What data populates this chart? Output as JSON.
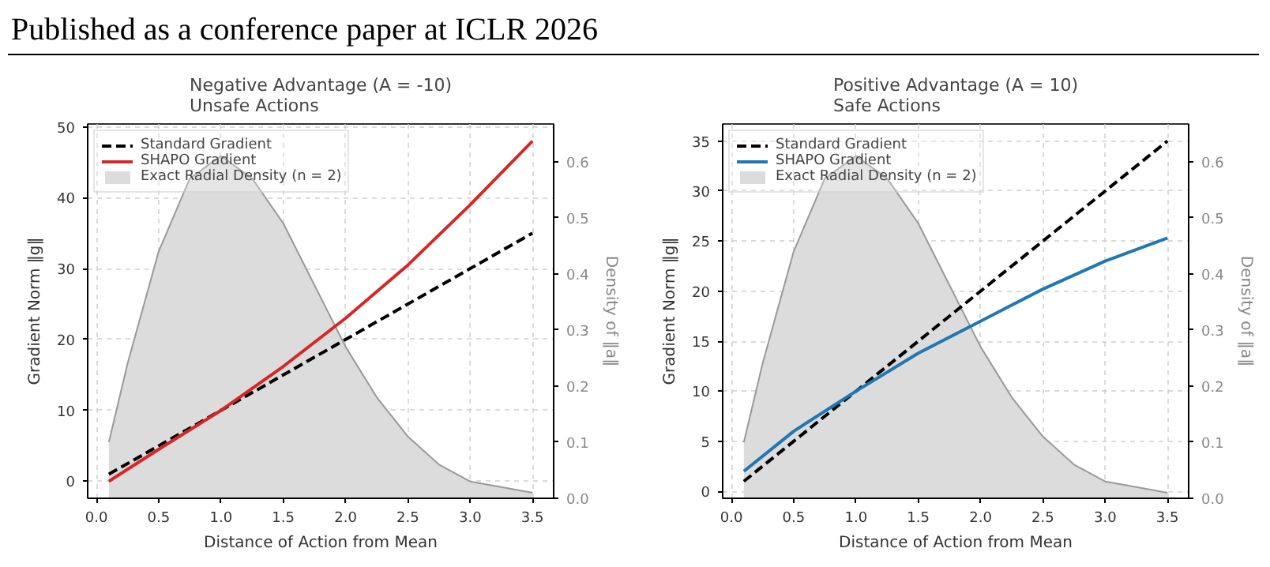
{
  "chart_data": [
    {
      "type": "line",
      "title": "Negative Advantage (A = -10)\nUnsafe Actions",
      "xlabel": "Distance of Action from Mean",
      "ylabel": "Gradient Norm ‖g‖",
      "y2label": "Density of ‖a‖",
      "annotations": [
        "Published as a conference paper at ICLR 2026"
      ],
      "xlim": [
        -0.07,
        3.67
      ],
      "xticks": [
        {
          "value": 0,
          "label": "0.0"
        },
        0.5,
        {
          "value": 1,
          "label": "1.0"
        },
        1.5,
        {
          "value": 2,
          "label": "2.0"
        },
        2.5,
        {
          "value": 3,
          "label": "3.0"
        },
        3.5
      ],
      "ylim": [
        -2.4,
        50.4
      ],
      "yticks": [
        0,
        10,
        20,
        30,
        40,
        50
      ],
      "y2lim": [
        0,
        0.667
      ],
      "y2ticks": [
        {
          "value": 0,
          "label": "0.0"
        },
        0.1,
        0.2,
        0.3,
        0.4,
        0.5,
        0.6
      ],
      "grid": true,
      "legend": "top left",
      "series": [
        {
          "name": "Standard Gradient",
          "line_style": "dashed",
          "color": "#000000",
          "x": [
            0.1,
            3.5
          ],
          "values": [
            1,
            35
          ]
        },
        {
          "name": "SHAPO Gradient",
          "line_style": "solid",
          "color": "#d62728",
          "x": [
            0.1,
            0.5,
            1.0,
            1.5,
            2.0,
            2.5,
            3.0,
            3.5
          ],
          "values": [
            0,
            4.5,
            10,
            16.2,
            23,
            30.5,
            39,
            48
          ]
        },
        {
          "name": "Exact Radial Density (n = 2)",
          "type": "area",
          "axis": "y2",
          "color": "#dcdcdc",
          "x": [
            0.1,
            0.25,
            0.5,
            0.75,
            1.0,
            1.25,
            1.5,
            1.75,
            2.0,
            2.25,
            2.5,
            2.75,
            3.0,
            3.25,
            3.5
          ],
          "values": [
            0.1,
            0.24,
            0.44,
            0.57,
            0.61,
            0.57,
            0.49,
            0.38,
            0.27,
            0.18,
            0.11,
            0.06,
            0.03,
            0.02,
            0.01
          ]
        }
      ]
    },
    {
      "type": "line",
      "title": "Positive Advantage (A = 10)\nSafe Actions",
      "xlabel": "Distance of Action from Mean",
      "ylabel": "Gradient Norm ‖g‖",
      "y2label": "Density of ‖a‖",
      "xlim": [
        -0.07,
        3.67
      ],
      "xticks": [
        {
          "value": 0,
          "label": "0.0"
        },
        0.5,
        {
          "value": 1,
          "label": "1.0"
        },
        1.5,
        {
          "value": 2,
          "label": "2.0"
        },
        2.5,
        {
          "value": 3,
          "label": "3.0"
        },
        3.5
      ],
      "ylim": [
        -0.7,
        36.7
      ],
      "yticks": [
        0,
        5,
        10,
        15,
        20,
        25,
        30,
        35
      ],
      "y2lim": [
        0,
        0.667
      ],
      "y2ticks": [
        {
          "value": 0,
          "label": "0.0"
        },
        0.1,
        0.2,
        0.3,
        0.4,
        0.5,
        0.6
      ],
      "grid": true,
      "legend": "top left",
      "series": [
        {
          "name": "Standard Gradient",
          "line_style": "dashed",
          "color": "#000000",
          "x": [
            0.1,
            3.5
          ],
          "values": [
            1,
            35
          ]
        },
        {
          "name": "SHAPO Gradient",
          "line_style": "solid",
          "color": "#1f77b4",
          "x": [
            0.1,
            0.5,
            1.0,
            1.5,
            2.0,
            2.5,
            3.0,
            3.5
          ],
          "values": [
            2,
            6,
            10,
            13.8,
            17,
            20.2,
            23,
            25.3
          ]
        },
        {
          "name": "Exact Radial Density (n = 2)",
          "type": "area",
          "axis": "y2",
          "color": "#dcdcdc",
          "x": [
            0.1,
            0.25,
            0.5,
            0.75,
            1.0,
            1.25,
            1.5,
            1.75,
            2.0,
            2.25,
            2.5,
            2.75,
            3.0,
            3.25,
            3.5
          ],
          "values": [
            0.1,
            0.24,
            0.44,
            0.57,
            0.61,
            0.57,
            0.49,
            0.38,
            0.27,
            0.18,
            0.11,
            0.06,
            0.03,
            0.02,
            0.01
          ]
        }
      ]
    }
  ]
}
